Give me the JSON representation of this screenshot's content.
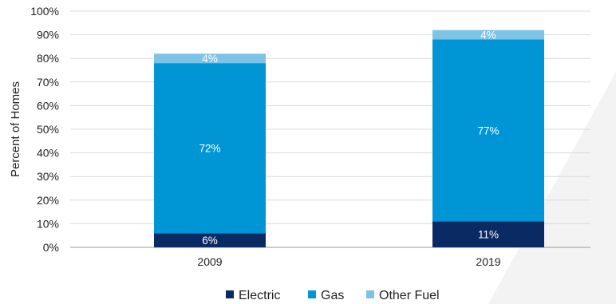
{
  "chart_data": {
    "type": "bar",
    "stacked": true,
    "categories": [
      "2009",
      "2019"
    ],
    "series": [
      {
        "name": "Electric",
        "values": [
          6,
          11
        ],
        "labels": [
          "6%",
          "11%"
        ],
        "color": "#0a2a64"
      },
      {
        "name": "Gas",
        "values": [
          72,
          77
        ],
        "labels": [
          "72%",
          "77%"
        ],
        "color": "#0096d6"
      },
      {
        "name": "Other Fuel",
        "values": [
          4,
          4
        ],
        "labels": [
          "4%",
          "4%"
        ],
        "color": "#7cc3e6"
      }
    ],
    "ylabel": "Percent of Homes",
    "xlabel": "",
    "ylim": [
      0,
      100
    ],
    "yticks": [
      "0%",
      "10%",
      "20%",
      "30%",
      "40%",
      "50%",
      "60%",
      "70%",
      "80%",
      "90%",
      "100%"
    ],
    "grid": true,
    "legend_position": "bottom"
  }
}
